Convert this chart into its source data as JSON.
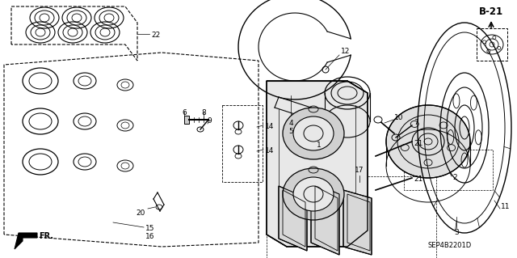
{
  "bg_color": "#ffffff",
  "fig_width": 6.4,
  "fig_height": 3.19,
  "dpi": 100,
  "diagram_code": "SEP4B2201D",
  "page_ref": "B-21",
  "text_color": "#000000",
  "font_size": 6.5,
  "font_size_bold": 8
}
